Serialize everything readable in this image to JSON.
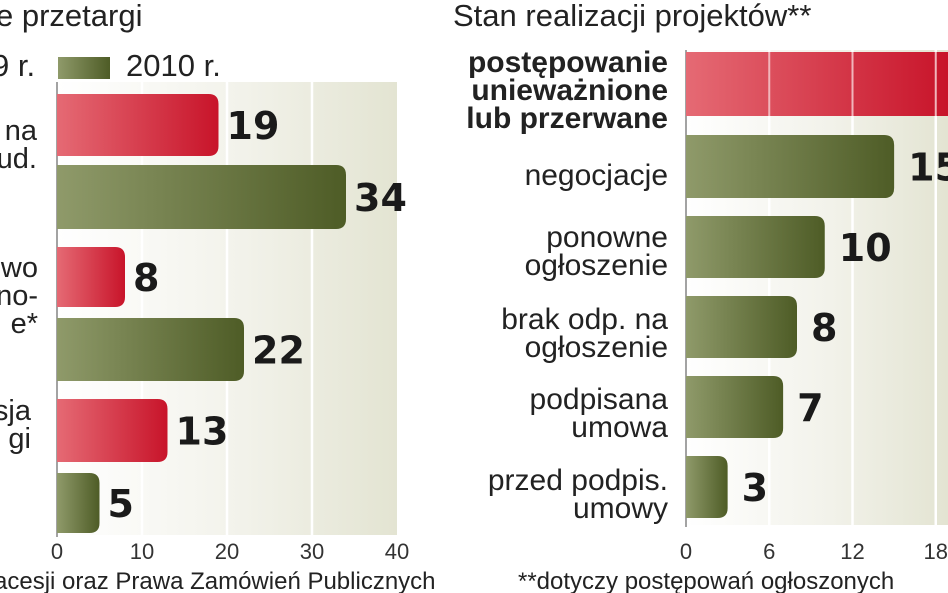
{
  "chart_data": [
    {
      "type": "bar",
      "orientation": "horizontal",
      "title": "e przetargi",
      "legend": [
        {
          "name": "9 r.",
          "color": "#d92a3a"
        },
        {
          "name": "2010 r.",
          "color": "#5c6b30"
        }
      ],
      "categories": [
        "na ud.",
        "wo no- e*",
        "sja gi"
      ],
      "series": [
        {
          "name": "9 r.",
          "values": [
            19,
            8,
            13
          ]
        },
        {
          "name": "2010 r.",
          "values": [
            34,
            22,
            5
          ]
        }
      ],
      "xlim": [
        0,
        40
      ],
      "xticks": [
        "0",
        "10",
        "20",
        "30",
        "40"
      ],
      "footnote": "acesji oraz Prawa Zamówień Publicznych"
    },
    {
      "type": "bar",
      "orientation": "horizontal",
      "title": "Stan realizacji projektów**",
      "categories": [
        "postępowanie unieważnione lub przerwane",
        "negocjacje",
        "ponowne ogłoszenie",
        "brak odp. na ogłoszenie",
        "podpisana umowa",
        "przed podpis. umowy"
      ],
      "values": [
        null,
        15,
        10,
        8,
        7,
        3
      ],
      "value_labels": [
        "",
        "15",
        "10",
        "8",
        "7",
        "3"
      ],
      "xlim": [
        0,
        24
      ],
      "xticks": [
        "0",
        "6",
        "12",
        "18"
      ],
      "footnote": "**dotyczy postępowań ogłoszonych"
    }
  ]
}
